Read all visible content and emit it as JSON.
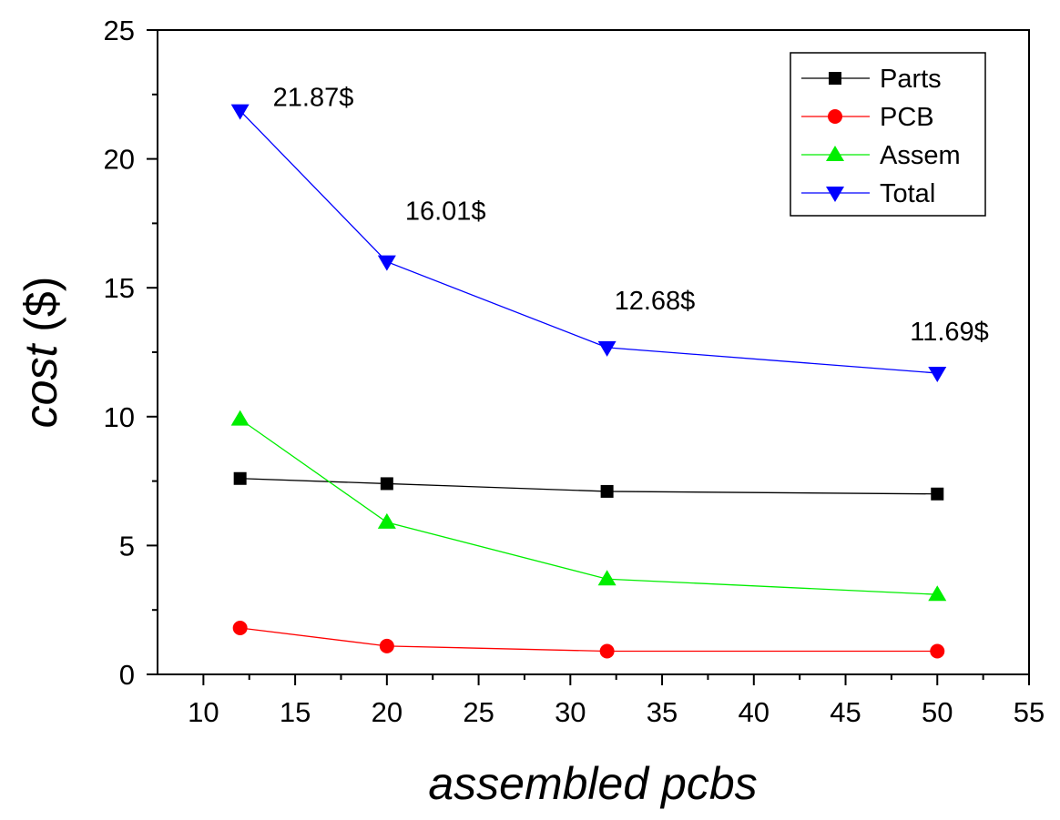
{
  "chart_data": {
    "type": "line",
    "xlabel": "assembled pcbs",
    "ylabel_italic": "cost",
    "ylabel_rest": " ($)",
    "xlim": [
      7.5,
      55
    ],
    "ylim": [
      0,
      25
    ],
    "xticks": [
      10,
      15,
      20,
      25,
      30,
      35,
      40,
      45,
      50,
      55
    ],
    "yticks": [
      0,
      5,
      10,
      15,
      20,
      25
    ],
    "grid": false,
    "legend_position": "top-right",
    "series": [
      {
        "name": "Parts",
        "color": "#000000",
        "marker": "square",
        "points": [
          [
            12,
            7.6
          ],
          [
            20,
            7.4
          ],
          [
            32,
            7.1
          ],
          [
            50,
            7.0
          ]
        ]
      },
      {
        "name": "PCB",
        "color": "#ff0000",
        "marker": "circle",
        "points": [
          [
            12,
            1.8
          ],
          [
            20,
            1.1
          ],
          [
            32,
            0.9
          ],
          [
            50,
            0.9
          ]
        ]
      },
      {
        "name": "Assem",
        "color": "#00ee00",
        "marker": "triangle-up",
        "points": [
          [
            12,
            9.9
          ],
          [
            20,
            5.9
          ],
          [
            32,
            3.7
          ],
          [
            50,
            3.1
          ]
        ]
      },
      {
        "name": "Total",
        "color": "#0000ff",
        "marker": "triangle-down",
        "points": [
          [
            12,
            21.87
          ],
          [
            20,
            16.01
          ],
          [
            32,
            12.68
          ],
          [
            50,
            11.69
          ]
        ]
      }
    ],
    "annotations": [
      "21.87$",
      "16.01$",
      "12.68$",
      "11.69$"
    ]
  }
}
